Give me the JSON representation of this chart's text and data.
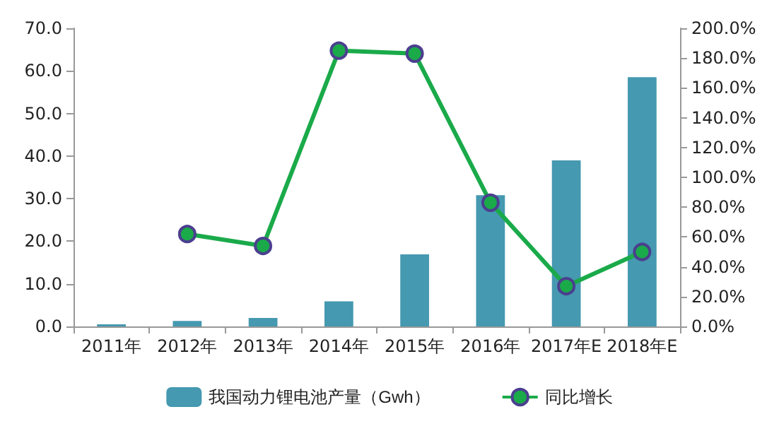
{
  "chart_data": {
    "type": "bar",
    "categories": [
      "2011年",
      "2012年",
      "2013年",
      "2014年",
      "2015年",
      "2016年",
      "2017年E",
      "2018年E"
    ],
    "series": [
      {
        "name": "我国动力锂电池产量（Gwh）",
        "color": "#4599b0",
        "values": [
          0.5,
          1.3,
          2.0,
          5.9,
          16.9,
          30.8,
          39.0,
          58.5
        ]
      },
      {
        "name": "同比增长",
        "type": "line",
        "axis": "y2",
        "color": "#1aaa4a",
        "marker": "circle",
        "values": [
          null,
          62,
          54,
          185,
          183,
          83,
          27,
          50
        ]
      }
    ],
    "ylim": [
      0,
      70
    ],
    "yticks": [
      {
        "value": 0,
        "label": "0.0"
      },
      {
        "value": 10,
        "label": "10.0"
      },
      {
        "value": 20,
        "label": "20.0"
      },
      {
        "value": 30,
        "label": "30.0"
      },
      {
        "value": 40,
        "label": "40.0"
      },
      {
        "value": 50,
        "label": "50.0"
      },
      {
        "value": 60,
        "label": "60.0"
      },
      {
        "value": 70,
        "label": "70.0"
      }
    ],
    "y2lim": [
      0,
      200
    ],
    "y2ticks": [
      {
        "value": 0,
        "label": "0.0%"
      },
      {
        "value": 20,
        "label": "20.0%"
      },
      {
        "value": 40,
        "label": "40.0%"
      },
      {
        "value": 60,
        "label": "60.0%"
      },
      {
        "value": 80,
        "label": "80.0%"
      },
      {
        "value": 100,
        "label": "100.0%"
      },
      {
        "value": 120,
        "label": "120.0%"
      },
      {
        "value": 140,
        "label": "140.0%"
      },
      {
        "value": 160,
        "label": "160.0%"
      },
      {
        "value": 180,
        "label": "180.0%"
      },
      {
        "value": 200,
        "label": "200.0%"
      }
    ],
    "grid": false,
    "legend": "bottom"
  }
}
